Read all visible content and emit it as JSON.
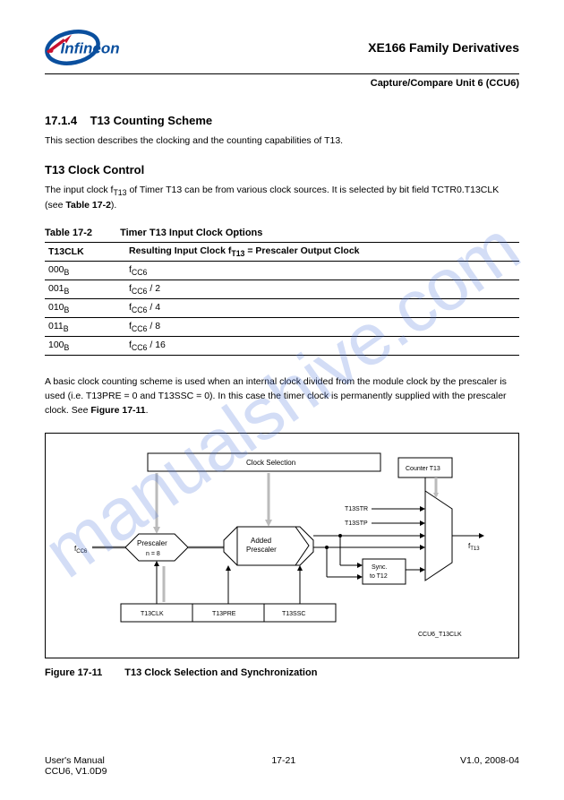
{
  "header": {
    "product": "XE166 Family Derivatives",
    "section": "Capture/Compare Unit 6 (CCU6)"
  },
  "section": {
    "number": "17.1.4",
    "title": "T13 Counting Scheme",
    "intro": "This section describes the clocking and the counting capabilities of T13."
  },
  "clock": {
    "heading": "T13 Clock Control",
    "text_1": "The input clock f",
    "text_1_sub": "T13",
    "text_2": " of Timer T13 can be from various clock sources. It is selected by bit field TCTR0.T13CLK (see ",
    "text_link": "Table 17-2",
    "text_3": ")."
  },
  "table": {
    "number": "Table 17-2",
    "title": "Timer T13 Input Clock Options",
    "col1": "T13CLK",
    "col2": "Resulting Input Clock f",
    "col2_sub": "T13",
    "col2_rest": " = Prescaler Output Clock",
    "rows": [
      {
        "bits": "000",
        "sub": "B",
        "desc_pre": "f",
        "desc_sub": "CC6",
        "desc": ""
      },
      {
        "bits": "001",
        "sub": "B",
        "desc_pre": "f",
        "desc_sub": "CC6",
        "desc": " / 2"
      },
      {
        "bits": "010",
        "sub": "B",
        "desc_pre": "f",
        "desc_sub": "CC6",
        "desc": " / 4"
      },
      {
        "bits": "011",
        "sub": "B",
        "desc_pre": "f",
        "desc_sub": "CC6",
        "desc": " / 8"
      },
      {
        "bits": "100",
        "sub": "B",
        "desc_pre": "f",
        "desc_sub": "CC6",
        "desc": " / 16"
      }
    ]
  },
  "figure": {
    "intro": "A basic clock counting scheme is used when an internal clock divided from the module clock by the prescaler is used (i.e. T13PRE = 0 and T13SSC = 0). In this case the timer clock is permanently supplied with the prescaler clock. See ",
    "intro_link": "Figure 17-11",
    "intro_2": ".",
    "number": "Figure 17-11",
    "caption": "T13 Clock Selection and Synchronization",
    "labels": {
      "clock_sel": "Clock Selection",
      "fcc6": "f",
      "fcc6_sub": "CC6",
      "prescaler": "Prescaler",
      "n8": "n = 8",
      "added": "Added\nPrescaler",
      "counter": "Counter T13",
      "t13str": "T13STR",
      "t13stp": "T13STP",
      "sync": "Sync.\n to T12",
      "t13clk": "T13CLK",
      "t13pre": "T13PRE",
      "t13ssc": "T13SSC",
      "ccu6_t13clk": "CCU6_T13CLK",
      "ft13": "f",
      "ft13_sub": "T13"
    }
  },
  "footer": {
    "left": "User's Manual",
    "center": "17-21",
    "right": "V1.0, 2008-04",
    "left2": "CCU6, V1.0D9"
  },
  "colors": {
    "brand_blue": "#0a4f9e",
    "brand_red": "#c8102e",
    "watermark": "rgba(80,120,220,0.25)"
  }
}
